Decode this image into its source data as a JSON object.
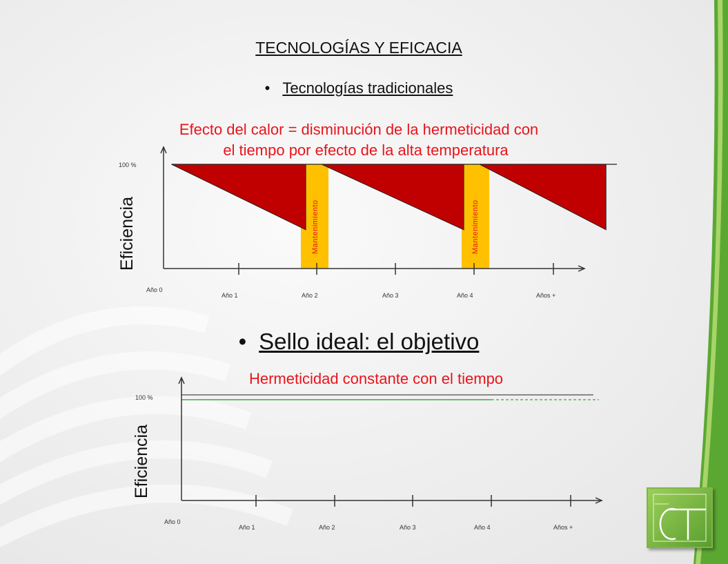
{
  "slide": {
    "title": "TECNOLOGÍAS Y EFICACIA",
    "bullet_1": "Tecnologías  tradicionales",
    "effect_line_1": "Efecto del calor = disminución de la hermeticidad con",
    "effect_line_2": "el tiempo por efecto de la alta temperatura",
    "bullet_2": "Sello ideal: el objetivo",
    "hermeticity_text": "Hermeticidad constante con el tiempo",
    "bullet_char": "•"
  },
  "chart_data": [
    {
      "type": "area",
      "ylabel": "Eficiencia",
      "y_top_label": "100 %",
      "x_labels": [
        "Año 0",
        "Año 1",
        "Año 2",
        "Año 3",
        "Año 4",
        "Años +"
      ],
      "maintenance_label": "Mantenimiento",
      "maintenance_at": [
        "Año 2",
        "Año 4"
      ],
      "description_values": {
        "segments": [
          {
            "from": 0.1,
            "to": 1.8,
            "start_pct": 100,
            "end_pct": 38
          },
          {
            "from": 2.0,
            "to": 3.8,
            "start_pct": 100,
            "end_pct": 38
          },
          {
            "from": 4.0,
            "to": 5.6,
            "start_pct": 100,
            "end_pct": 38
          }
        ]
      },
      "colors": {
        "loss_fill": "#c00000",
        "maintenance": "#ffc000",
        "axis": "#333333"
      }
    },
    {
      "type": "line",
      "ylabel": "Eficiencia",
      "y_top_label": "100 %",
      "x_labels": [
        "Año 0",
        "Año 1",
        "Año 2",
        "Año 3",
        "Año 4",
        "Años +"
      ],
      "series": [
        {
          "style": "solid-black",
          "value_pct": 100
        },
        {
          "style": "green",
          "value_pct": 96
        }
      ],
      "colors": {
        "reference": "#222222",
        "constant": "#3aa845",
        "axis": "#333333"
      }
    }
  ]
}
